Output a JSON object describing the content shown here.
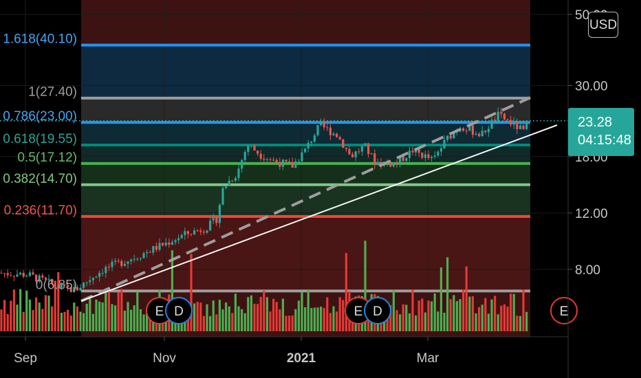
{
  "chart_data": {
    "type": "candlestick",
    "currency_button": "USD",
    "current_price": "23.28",
    "countdown": "04:15:48",
    "x_tick_labels": [
      "Sep",
      "Nov",
      "2021",
      "Mar"
    ],
    "y_tick_labels": [
      "50.00",
      "30.00",
      "18.00",
      "12.00",
      "8.00"
    ],
    "y_ticks": [
      50,
      30,
      18,
      12,
      8
    ],
    "ylim": [
      4.4,
      52
    ],
    "log_scale": true,
    "fibonacci_levels": [
      {
        "label": "1.618(40.10)",
        "price": 40.1,
        "color": "#2196f3",
        "text_color": "#42a5f5"
      },
      {
        "label": "1(27.40)",
        "price": 27.4,
        "color": "#9e9e9e",
        "text_color": "#9e9e9e"
      },
      {
        "label": "0.786(23.00)",
        "price": 23.0,
        "color": "#2196f3",
        "text_color": "#42a5f5"
      },
      {
        "label": "0.618(19.55)",
        "price": 19.55,
        "color": "#00897b",
        "text_color": "#26a69a"
      },
      {
        "label": "0.5(17.12)",
        "price": 17.12,
        "color": "#4caf50",
        "text_color": "#66bb6a"
      },
      {
        "label": "0.382(14.70)",
        "price": 14.7,
        "color": "#81c784",
        "text_color": "#81c784"
      },
      {
        "label": "0.236(11.70)",
        "price": 11.7,
        "color": "#f44336",
        "text_color": "#ef5350"
      },
      {
        "label": "0(6.85)",
        "price": 6.85,
        "color": "#9e9e9e",
        "text_color": "#9e9e9e"
      }
    ],
    "event_markers": [
      {
        "label": "E",
        "kind": "earnings"
      },
      {
        "label": "D",
        "kind": "dividend"
      },
      {
        "label": "E",
        "kind": "earnings"
      },
      {
        "label": "D",
        "kind": "dividend"
      },
      {
        "label": "E",
        "kind": "earnings"
      }
    ],
    "colors": {
      "up": "#26a69a",
      "down": "#ef5350",
      "volume_up": "#4caf50",
      "volume_down": "#e53935"
    }
  }
}
